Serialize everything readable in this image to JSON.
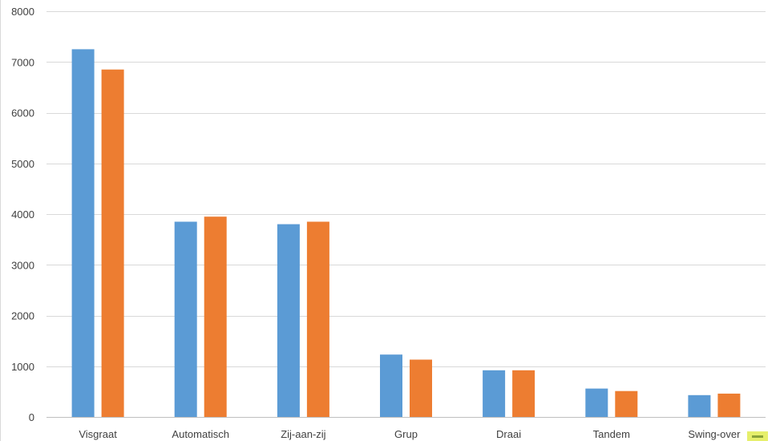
{
  "chart_data": {
    "type": "bar",
    "categories": [
      "Visgraat",
      "Automatisch",
      "Zij-aan-zij",
      "Grup",
      "Draai",
      "Tandem",
      "Swing-over"
    ],
    "series": [
      {
        "values": [
          7250,
          3850,
          3800,
          1230,
          920,
          560,
          430
        ],
        "color": "#5b9bd5"
      },
      {
        "values": [
          6850,
          3950,
          3850,
          1130,
          920,
          510,
          460
        ],
        "color": "#ed7d31"
      }
    ],
    "ylim": [
      0,
      8000
    ],
    "yticks": [
      "0",
      "1000",
      "2000",
      "3000",
      "4000",
      "5000",
      "6000",
      "7000",
      "8000"
    ],
    "grid": true,
    "title": "",
    "xlabel": "",
    "ylabel": ""
  }
}
